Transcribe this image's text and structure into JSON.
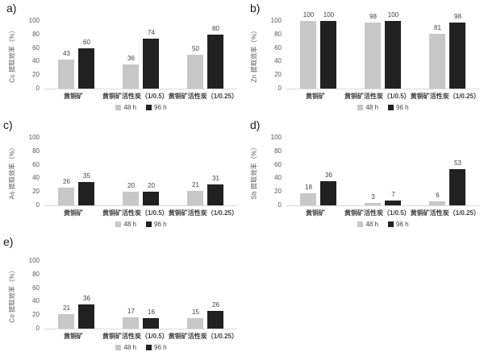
{
  "colors": {
    "bar_48h": "#c7c7c7",
    "bar_96h": "#212121",
    "axis_line": "#d9d9d9",
    "tick_text": "#595959",
    "value_text": "#404040",
    "background": "#ffffff"
  },
  "legend": {
    "items": [
      {
        "label": "48 h",
        "color": "#c7c7c7"
      },
      {
        "label": "96 h",
        "color": "#212121"
      }
    ]
  },
  "chart_data": [
    {
      "id": "a",
      "panel_label": "a)",
      "type": "bar",
      "ylabel": "Cu 提取效率（%）",
      "xlabel": "",
      "ylim": [
        0,
        100
      ],
      "yticks": [
        0,
        20,
        40,
        60,
        80,
        100
      ],
      "grid": false,
      "legend_position": "bottom",
      "categories": [
        "黄铜矿",
        "黄铜矿活性炭（1/0.5）",
        "黄铜矿活性炭（1/0.25）"
      ],
      "series": [
        {
          "name": "48 h",
          "values": [
            43,
            36,
            50
          ]
        },
        {
          "name": "96 h",
          "values": [
            60,
            74,
            80
          ]
        }
      ]
    },
    {
      "id": "b",
      "panel_label": "b)",
      "type": "bar",
      "ylabel": "Zn 提取效率（%）",
      "xlabel": "",
      "ylim": [
        0,
        100
      ],
      "yticks": [
        0,
        20,
        40,
        60,
        80,
        100
      ],
      "grid": false,
      "legend_position": "bottom",
      "categories": [
        "黄铜矿",
        "黄铜矿活性炭（1/0.5）",
        "黄铜矿活性炭（1/0.25）"
      ],
      "series": [
        {
          "name": "48 h",
          "values": [
            100,
            98,
            81
          ]
        },
        {
          "name": "96 h",
          "values": [
            100,
            100,
            98
          ]
        }
      ]
    },
    {
      "id": "c",
      "panel_label": "c)",
      "type": "bar",
      "ylabel": "As 提取效率（%）",
      "xlabel": "",
      "ylim": [
        0,
        100
      ],
      "yticks": [
        0,
        20,
        40,
        60,
        80,
        100
      ],
      "grid": false,
      "legend_position": "bottom",
      "categories": [
        "黄铜矿",
        "黄铜矿活性炭（1/0.5）",
        "黄铜矿活性炭（1/0.25）"
      ],
      "series": [
        {
          "name": "48 h",
          "values": [
            26,
            20,
            21
          ]
        },
        {
          "name": "96 h",
          "values": [
            35,
            20,
            31
          ]
        }
      ]
    },
    {
      "id": "d",
      "panel_label": "d)",
      "type": "bar",
      "ylabel": "Sb 提取效率（%）",
      "xlabel": "",
      "ylim": [
        0,
        100
      ],
      "yticks": [
        0,
        20,
        40,
        60,
        80,
        100
      ],
      "grid": false,
      "legend_position": "bottom",
      "categories": [
        "黄铜矿",
        "黄铜矿活性炭（1/0.5）",
        "黄铜矿活性炭（1/0.25）"
      ],
      "series": [
        {
          "name": "48 h",
          "values": [
            18,
            3,
            6
          ]
        },
        {
          "name": "96 h",
          "values": [
            36,
            7,
            53
          ]
        }
      ]
    },
    {
      "id": "e",
      "panel_label": "e)",
      "type": "bar",
      "ylabel": "Co 提取效率（%）",
      "xlabel": "",
      "ylim": [
        0,
        100
      ],
      "yticks": [
        0,
        20,
        40,
        60,
        80,
        100
      ],
      "grid": false,
      "legend_position": "bottom",
      "categories": [
        "黄铜矿",
        "黄铜矿活性炭（1/0.5）",
        "黄铜矿活性炭（1/0.25）"
      ],
      "series": [
        {
          "name": "48 h",
          "values": [
            21,
            17,
            15
          ]
        },
        {
          "name": "96 h",
          "values": [
            36,
            16,
            26
          ]
        }
      ]
    }
  ]
}
